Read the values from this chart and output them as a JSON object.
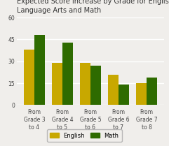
{
  "title": "Expected Score Increase by Grade for English\nLanguage Arts and Math",
  "categories": [
    "From\nGrade 3\nto 4",
    "From\nGrade 4\nto 5",
    "From\nGrade 5\nto 6",
    "From\nGrade 6\nto 7",
    "From\nGrade 7\nto 8"
  ],
  "english_values": [
    38,
    29,
    29,
    21,
    15
  ],
  "math_values": [
    48,
    43,
    27,
    14,
    19
  ],
  "english_color": "#C8A800",
  "math_color": "#2E6B00",
  "ylim": [
    0,
    60
  ],
  "yticks": [
    0,
    15,
    30,
    45,
    60
  ],
  "legend_labels": [
    "English",
    "Math"
  ],
  "background_color": "#f0eeeb",
  "title_fontsize": 7.0,
  "tick_fontsize": 5.5,
  "legend_fontsize": 6.0,
  "bar_width": 0.38
}
